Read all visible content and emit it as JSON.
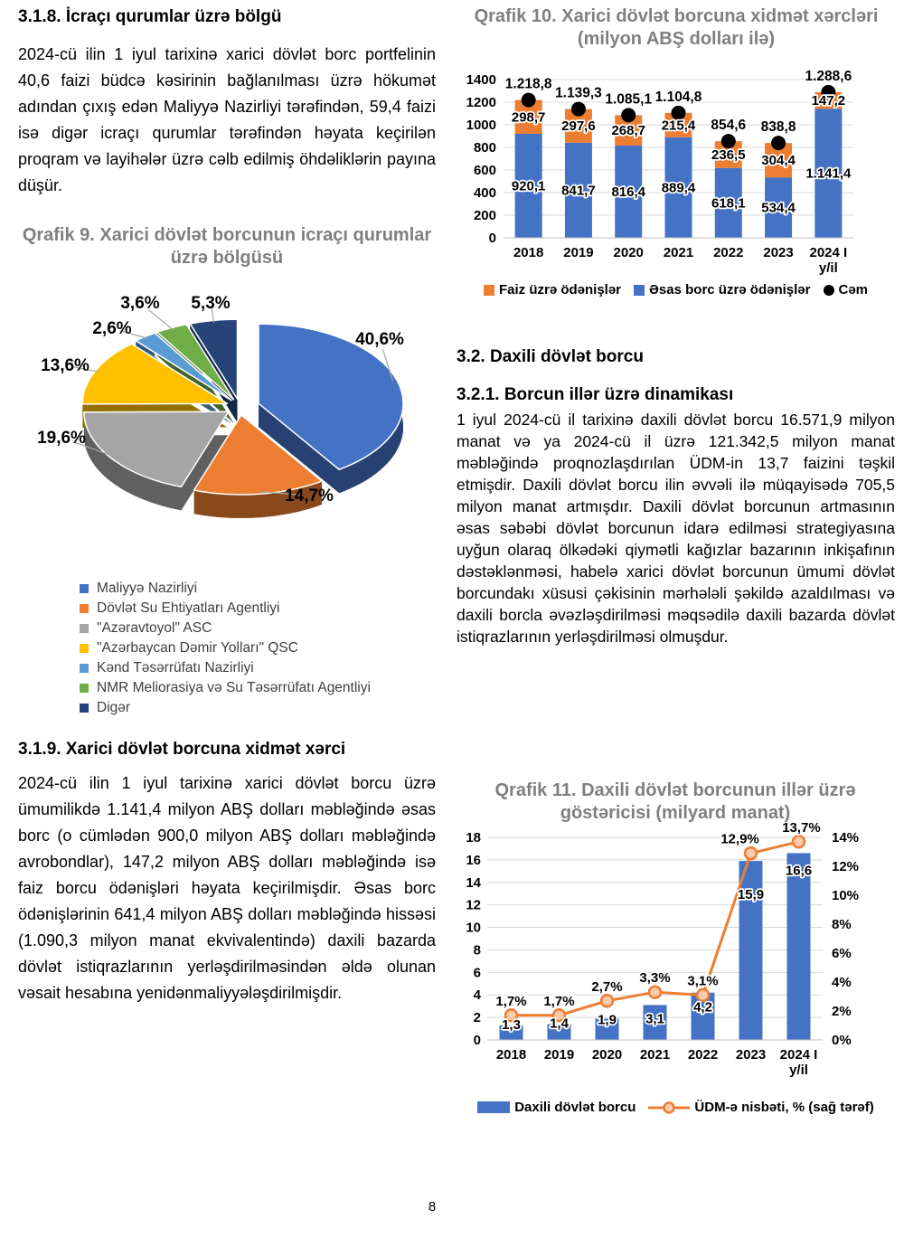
{
  "page": {
    "number": "8"
  },
  "sections": {
    "s318": {
      "heading": "3.1.8. İcraçı qurumlar üzrə bölgü",
      "body": "2024-cü ilin 1 iyul tarixinə xarici dövlət borc portfelinin 40,6 faizi büdcə kəsirinin bağlanılması üzrə hökumət adından çıxış edən Maliyyə Nazirliyi tərəfindən, 59,4 faizi isə digər icraçı qurumlar tərəfindən həyata keçirilən proqram və layihələr üzrə cəlb edilmiş öhdəliklərin payına düşür."
    },
    "s319": {
      "heading": "3.1.9. Xarici dövlət borcuna xidmət xərci",
      "body": "2024-cü ilin 1 iyul tarixinə xarici dövlət borcu üzrə ümumilikdə 1.141,4 milyon ABŞ dolları məbləğində əsas borc (o cümlədən 900,0 milyon ABŞ dolları məbləğində avrobondlar), 147,2 milyon ABŞ dolları məbləğində isə faiz borcu ödənişləri həyata keçirilmişdir. Əsas borc ödənişlərinin 641,4 milyon ABŞ dolları məbləğində hissəsi (1.090,3 milyon manat ekvivalentində) daxili bazarda dövlət istiqrazlarının yerləşdirilməsindən əldə olunan vəsait hesabına yenidənmaliyyələşdirilmişdir."
    },
    "s32": {
      "heading": "3.2. Daxili dövlət borcu"
    },
    "s321": {
      "heading": "3.2.1. Borcun illər üzrə dinamikası",
      "body": "1 iyul 2024-cü il tarixinə daxili dövlət borcu 16.571,9 milyon manat və ya 2024-cü il üzrə 121.342,5 milyon manat məbləğində proqnozlaşdırılan ÜDM-in 13,7 faizini təşkil etmişdir. Daxili dövlət borcu ilin əvvəli ilə müqayisədə 705,5 milyon manat artmışdır. Daxili dövlət borcunun artmasının əsas səbəbi dövlət borcunun idarə edilməsi strategiyasına uyğun olaraq ölkədəki qiymətli kağızlar bazarının inkişafının dəstəklənməsi, habelə xarici dövlət borcunun ümumi dövlət borcundakı xüsusi çəkisinin mərhələli şəkildə azaldılması və daxili borcla əvəzləşdirilməsi məqsədilə daxili bazarda dövlət istiqrazlarının yerləşdirilməsi olmuşdur."
    }
  },
  "chart_data": [
    {
      "id": "qrafik9",
      "type": "pie",
      "style": "3d-exploded",
      "title": "Qrafik 9. Xarici dövlət borcunun icraçı qurumlar üzrə bölgüsü",
      "labels": [
        "Maliyyə Nazirliyi",
        "Dövlət Su Ehtiyatları Agentliyi",
        "\"Azəravtoyol\" ASC",
        "\"Azərbaycan Dəmir Yolları\" QSC",
        "Kənd Təsərrüfatı Nazirliyi",
        "NMR Meliorasiya və Su Təsərrüfatı Agentliyi",
        "Digər"
      ],
      "values": [
        40.6,
        14.7,
        19.6,
        13.6,
        2.6,
        3.6,
        5.3
      ],
      "value_labels": [
        "40,6%",
        "14,7%",
        "19,6%",
        "13,6%",
        "2,6%",
        "3,6%",
        "5,3%"
      ],
      "colors": [
        "#4472C4",
        "#ED7D31",
        "#A5A5A5",
        "#FFC000",
        "#5B9BD5",
        "#70AD47",
        "#264478"
      ],
      "legend_position": "bottom"
    },
    {
      "id": "qrafik10",
      "type": "bar",
      "stacked": true,
      "title": "Qrafik 10. Xarici dövlət borcuna xidmət xərcləri (milyon ABŞ dolları ilə)",
      "categories": [
        [
          "2018"
        ],
        [
          "2019"
        ],
        [
          "2020"
        ],
        [
          "2021"
        ],
        [
          "2022"
        ],
        [
          "2023"
        ],
        [
          "2024 I",
          "y/il"
        ]
      ],
      "series": [
        {
          "name": "Faiz üzrə ödənişlər",
          "role": "stack-top",
          "color": "#ED7D31",
          "values": [
            298.7,
            297.6,
            268.7,
            215.4,
            236.5,
            304.4,
            147.2
          ],
          "labels": [
            "298,7",
            "297,6",
            "268,7",
            "215,4",
            "236,5",
            "304,4",
            "147,2"
          ]
        },
        {
          "name": "Əsas borc üzrə ödənişlər",
          "role": "stack-bottom",
          "color": "#4472C4",
          "values": [
            920.1,
            841.7,
            816.4,
            889.4,
            618.1,
            534.4,
            1141.4
          ],
          "labels": [
            "920,1",
            "841,7",
            "816,4",
            "889,4",
            "618,1",
            "534,4",
            "1.141,4"
          ]
        },
        {
          "name": "Cəm",
          "role": "total-point",
          "color": "#000000",
          "values": [
            1218.8,
            1139.3,
            1085.1,
            1104.8,
            854.6,
            838.8,
            1288.6
          ],
          "labels": [
            "1.218,8",
            "1.139,3",
            "1.085,1",
            "1.104,8",
            "854,6",
            "838,8",
            "1.288,6"
          ]
        }
      ],
      "ylim": [
        0,
        1400
      ],
      "ystep": 200,
      "grid": true,
      "legend_position": "bottom"
    },
    {
      "id": "qrafik11",
      "type": "combo",
      "title": "Qrafik 11. Daxili dövlət borcunun illər üzrə göstəricisi (milyard manat)",
      "categories": [
        [
          "2018"
        ],
        [
          "2019"
        ],
        [
          "2020"
        ],
        [
          "2021"
        ],
        [
          "2022"
        ],
        [
          "2023"
        ],
        [
          "2024 I",
          "y/il"
        ]
      ],
      "series": [
        {
          "name": "Daxili dövlət borcu",
          "type": "bar",
          "axis": "left",
          "color": "#4472C4",
          "values": [
            1.3,
            1.4,
            1.9,
            3.1,
            4.2,
            15.9,
            16.6
          ],
          "labels": [
            "1,3",
            "1,4",
            "1,9",
            "3,1",
            "4,2",
            "15,9",
            "16,6"
          ]
        },
        {
          "name": "ÜDM-ə nisbəti, % (sağ tərəf)",
          "type": "line",
          "axis": "right",
          "color": "#ED7D31",
          "marker_fill": "#F8CBAD",
          "values": [
            1.7,
            1.7,
            2.7,
            3.3,
            3.1,
            12.9,
            13.7
          ],
          "labels": [
            "1,7%",
            "1,7%",
            "2,7%",
            "3,3%",
            "3,1%",
            "12,9%",
            "13,7%"
          ]
        }
      ],
      "left_ylim": [
        0,
        18
      ],
      "left_step": 2,
      "right_ylim": [
        0,
        14
      ],
      "right_step": 2,
      "right_format": "percent",
      "grid": true,
      "legend_position": "bottom"
    }
  ]
}
